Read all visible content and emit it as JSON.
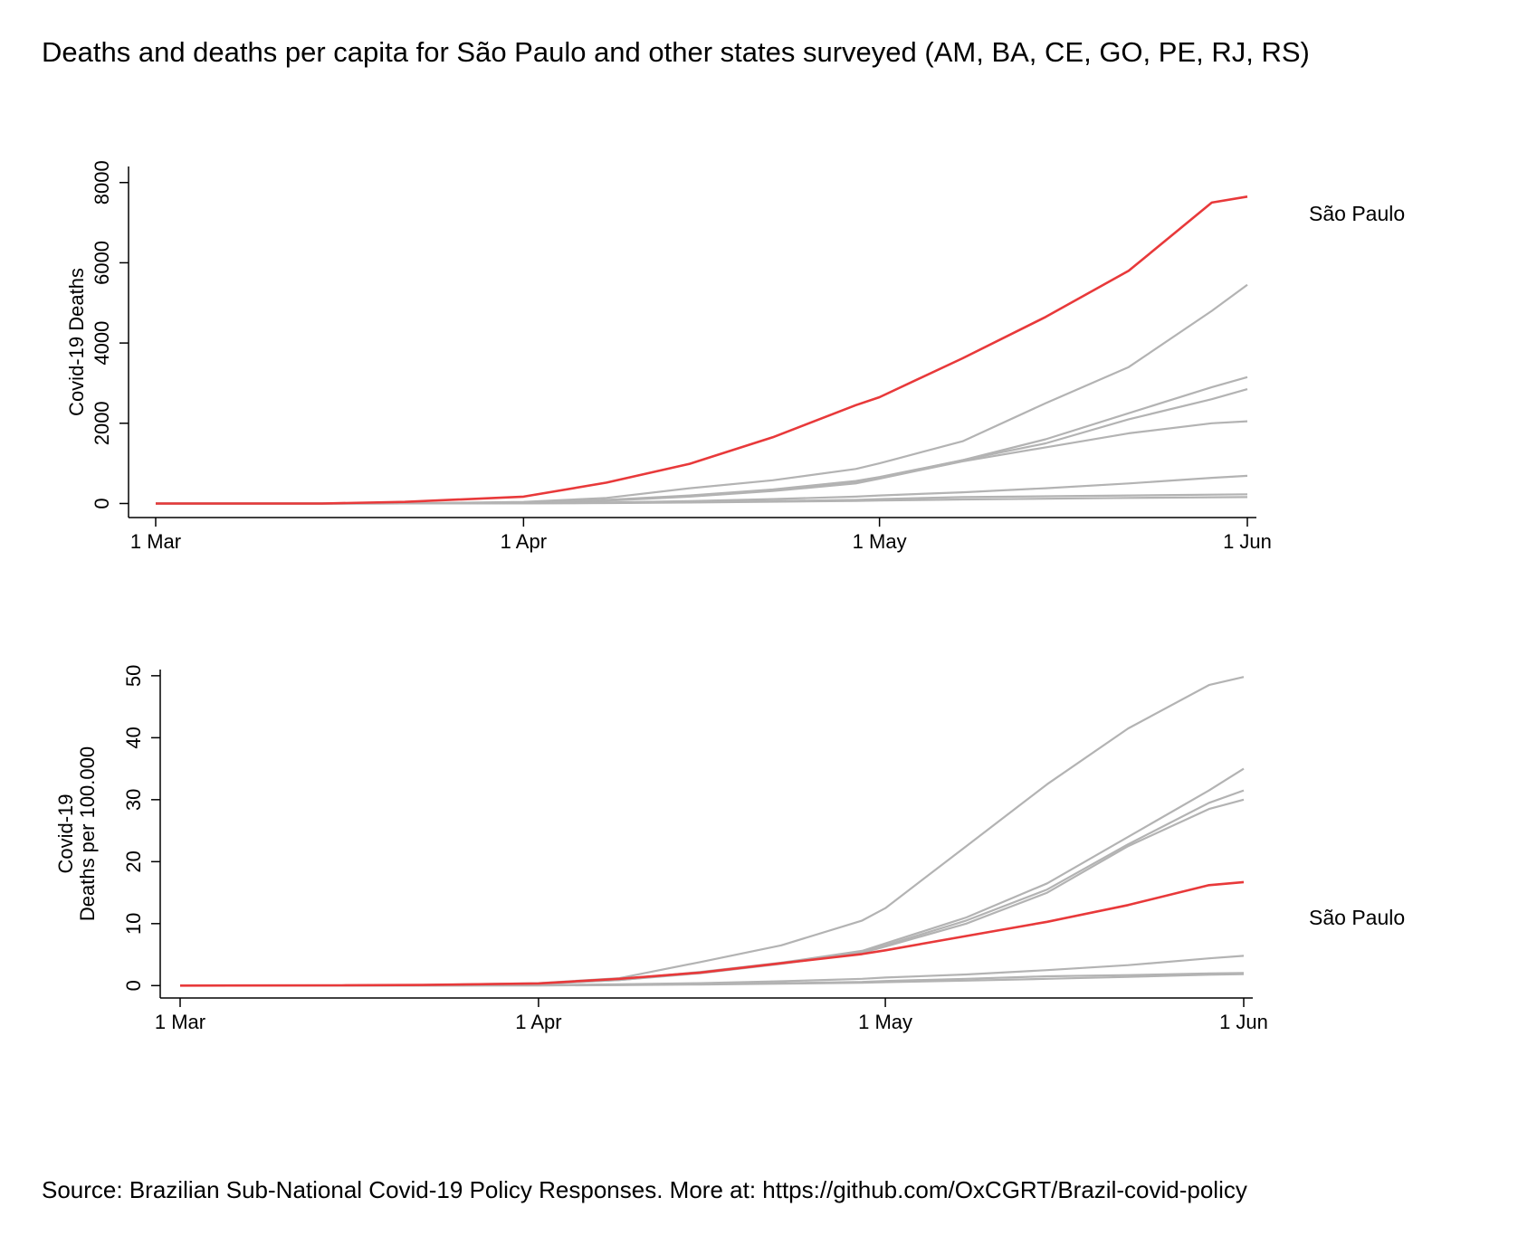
{
  "title": "Deaths and deaths per capita for São Paulo and other states surveyed (AM, BA, CE, GO, PE, RJ, RS)",
  "source": "Source: Brazilian Sub-National Covid-19 Policy Responses. More at: https://github.com/OxCGRT/Brazil-covid-policy",
  "colors": {
    "highlight": "#e8393a",
    "other": "#b3b3b3"
  },
  "chart_data": [
    {
      "type": "line",
      "ylabel": "Covid-19 Deaths",
      "xlabel": "",
      "x_ticks": [
        "1 Mar",
        "1 Apr",
        "1 May",
        "1 Jun"
      ],
      "y_ticks": [
        0,
        2000,
        4000,
        6000,
        8000
      ],
      "ylim": [
        -350,
        8400
      ],
      "x": [
        "1 Mar",
        "15 Mar",
        "22 Mar",
        "1 Apr",
        "8 Apr",
        "15 Apr",
        "22 Apr",
        "29 Apr",
        "1 May",
        "8 May",
        "15 May",
        "22 May",
        "29 May",
        "1 Jun"
      ],
      "highlight_label": "São Paulo",
      "series": [
        {
          "name": "São Paulo",
          "highlight": true,
          "values": [
            0,
            0,
            40,
            170,
            520,
            990,
            1650,
            2450,
            2650,
            3620,
            4650,
            5800,
            7500,
            7650
          ]
        },
        {
          "values": [
            0,
            0,
            5,
            40,
            140,
            380,
            580,
            860,
            1000,
            1550,
            2500,
            3400,
            4800,
            5450
          ]
        },
        {
          "values": [
            0,
            0,
            3,
            25,
            90,
            200,
            350,
            560,
            660,
            1080,
            1600,
            2250,
            2900,
            3150
          ]
        },
        {
          "values": [
            0,
            0,
            3,
            20,
            80,
            190,
            330,
            520,
            640,
            1080,
            1500,
            2100,
            2600,
            2850
          ]
        },
        {
          "values": [
            0,
            0,
            2,
            18,
            70,
            170,
            310,
            500,
            620,
            1050,
            1400,
            1750,
            2000,
            2050
          ]
        },
        {
          "values": [
            0,
            0,
            1,
            8,
            25,
            60,
            110,
            170,
            200,
            280,
            380,
            500,
            640,
            690
          ]
        },
        {
          "values": [
            0,
            0,
            1,
            5,
            15,
            35,
            60,
            90,
            110,
            160,
            180,
            200,
            220,
            230
          ]
        },
        {
          "values": [
            0,
            0,
            1,
            4,
            10,
            25,
            45,
            65,
            75,
            100,
            120,
            140,
            155,
            160
          ]
        }
      ]
    },
    {
      "type": "line",
      "ylabel": [
        "Covid-19",
        "Deaths per 100.000"
      ],
      "xlabel": "",
      "x_ticks": [
        "1 Mar",
        "1 Apr",
        "1 May",
        "1 Jun"
      ],
      "y_ticks": [
        0,
        10,
        20,
        30,
        40,
        50
      ],
      "ylim": [
        -2,
        51
      ],
      "x": [
        "1 Mar",
        "15 Mar",
        "22 Mar",
        "1 Apr",
        "8 Apr",
        "15 Apr",
        "22 Apr",
        "29 Apr",
        "1 May",
        "8 May",
        "15 May",
        "22 May",
        "29 May",
        "1 Jun"
      ],
      "highlight_label": "São Paulo",
      "series": [
        {
          "name": "São Paulo",
          "highlight": true,
          "values": [
            0,
            0.05,
            0.1,
            0.35,
            1.1,
            2.1,
            3.6,
            5.1,
            5.7,
            8.0,
            10.3,
            13.0,
            16.2,
            16.7
          ]
        },
        {
          "values": [
            0,
            0.02,
            0.1,
            0.4,
            1.2,
            3.8,
            6.5,
            10.5,
            12.5,
            22.5,
            32.5,
            41.5,
            48.5,
            49.8
          ]
        },
        {
          "values": [
            0,
            0.02,
            0.08,
            0.3,
            1.0,
            2.2,
            3.7,
            5.6,
            6.8,
            11.0,
            16.5,
            24.0,
            31.5,
            35.0
          ]
        },
        {
          "values": [
            0,
            0.02,
            0.07,
            0.28,
            0.9,
            2.1,
            3.6,
            5.4,
            6.5,
            10.5,
            15.5,
            22.8,
            29.5,
            31.5
          ]
        },
        {
          "values": [
            0,
            0.02,
            0.07,
            0.26,
            0.9,
            2.0,
            3.5,
            5.3,
            6.3,
            10.0,
            15.0,
            22.5,
            28.5,
            30.0
          ]
        },
        {
          "values": [
            0,
            0,
            0.02,
            0.08,
            0.2,
            0.4,
            0.7,
            1.1,
            1.3,
            1.8,
            2.5,
            3.3,
            4.4,
            4.8
          ]
        },
        {
          "values": [
            0,
            0,
            0.01,
            0.05,
            0.12,
            0.25,
            0.4,
            0.6,
            0.75,
            1.1,
            1.5,
            1.7,
            1.95,
            2.05
          ]
        },
        {
          "values": [
            0,
            0,
            0.01,
            0.03,
            0.08,
            0.18,
            0.3,
            0.45,
            0.55,
            0.8,
            1.1,
            1.4,
            1.75,
            1.85
          ]
        }
      ]
    }
  ]
}
